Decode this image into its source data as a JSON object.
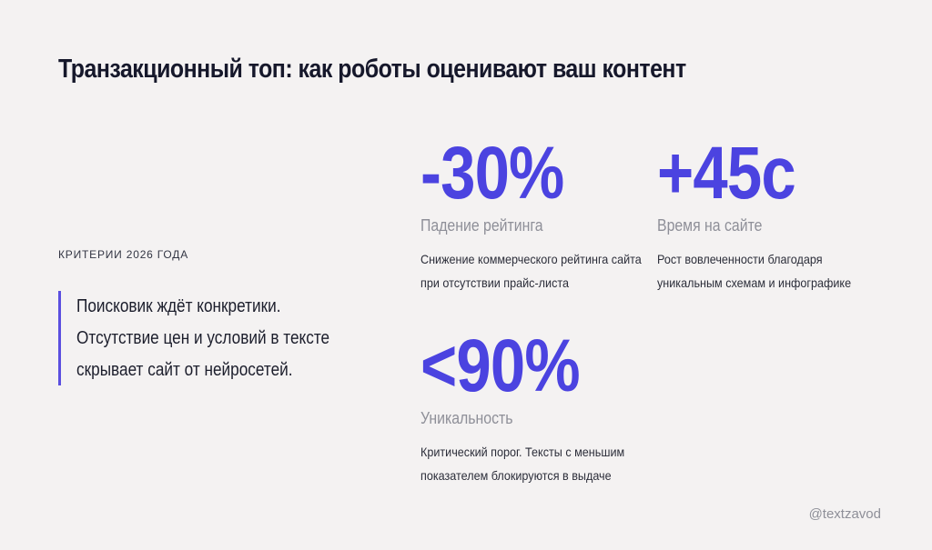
{
  "title": "Транзакционный топ: как роботы оценивают ваш контент",
  "criteria_label": "Критерии 2026 года",
  "quote": {
    "lines": [
      "Поисковик ждёт конкретики.",
      "Отсутствие цен и условий в тексте",
      "скрывает сайт от нейросетей."
    ]
  },
  "stats": [
    {
      "value": "-30%",
      "label": "Падение рейтинга",
      "description": "Снижение коммерческого рейтинга сайта при отсутствии прайс-листа"
    },
    {
      "value": "+45с",
      "label": "Время на сайте",
      "description": "Рост вовлеченности благодаря уникальным схемам и инфографике"
    },
    {
      "value": "<90%",
      "label": "Уникальность",
      "description": "Критический порог. Тексты с меньшим показателем блокируются в выдаче"
    }
  ],
  "handle": "@textzavod",
  "colors": {
    "background": "#f4f2f2",
    "accent": "#4b43e0",
    "text": "#16182b",
    "muted": "#8e8f98"
  }
}
